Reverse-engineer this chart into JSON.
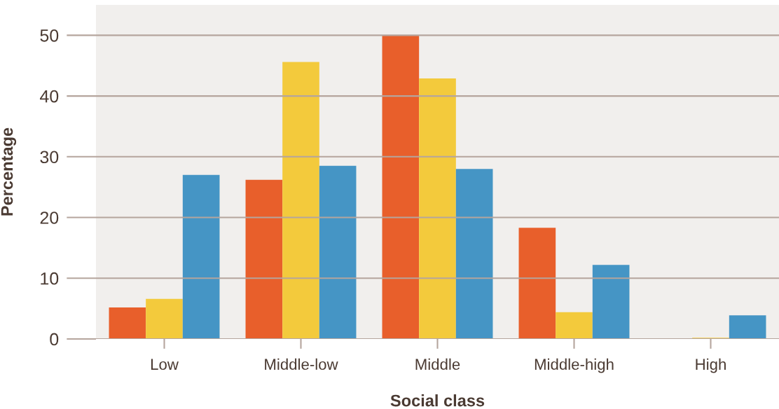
{
  "chart_data": {
    "type": "bar",
    "xlabel": "Social class",
    "ylabel": "Percentage",
    "categories": [
      "Low",
      "Middle-low",
      "Middle",
      "Middle-high",
      "High"
    ],
    "series": [
      {
        "color": "#e85f2b",
        "values": [
          5.2,
          26.2,
          50,
          18.3,
          0
        ]
      },
      {
        "color": "#f3ca3c",
        "values": [
          6.6,
          45.6,
          42.9,
          4.4,
          0.2
        ]
      },
      {
        "color": "#4595c5",
        "values": [
          27.0,
          28.5,
          28.0,
          12.2,
          3.9
        ]
      }
    ],
    "ylim": [
      0,
      55
    ],
    "yticks": [
      0,
      10,
      20,
      30,
      40,
      50
    ],
    "grid": "y"
  }
}
